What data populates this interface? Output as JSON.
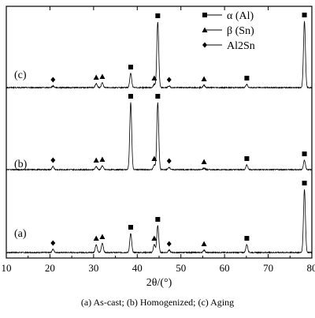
{
  "chart_data": {
    "type": "line",
    "xlabel": "2θ/(°)",
    "xlim": [
      10,
      80
    ],
    "x_ticks": [
      10,
      20,
      30,
      40,
      50,
      60,
      70,
      80
    ],
    "legend": {
      "placement": "top-right",
      "entries": [
        {
          "marker": "square",
          "label": "α (Al)"
        },
        {
          "marker": "triangle",
          "label": "β (Sn)"
        },
        {
          "marker": "diamond",
          "label": "Al2Sn"
        }
      ]
    },
    "series": [
      {
        "name": "(a)",
        "peaks": [
          {
            "x": 20.7,
            "h": 0.04,
            "phase": "diamond"
          },
          {
            "x": 30.6,
            "h": 0.1,
            "phase": "triangle"
          },
          {
            "x": 32.0,
            "h": 0.12,
            "phase": "triangle"
          },
          {
            "x": 38.5,
            "h": 0.24,
            "phase": "square"
          },
          {
            "x": 43.9,
            "h": 0.1,
            "phase": "triangle"
          },
          {
            "x": 44.7,
            "h": 0.34,
            "phase": "square"
          },
          {
            "x": 47.3,
            "h": 0.03,
            "phase": "diamond"
          },
          {
            "x": 55.3,
            "h": 0.03,
            "phase": "triangle"
          },
          {
            "x": 65.1,
            "h": 0.1,
            "phase": "square"
          },
          {
            "x": 78.3,
            "h": 0.8,
            "phase": "square"
          }
        ]
      },
      {
        "name": "(b)",
        "peaks": [
          {
            "x": 20.7,
            "h": 0.04,
            "phase": "diamond"
          },
          {
            "x": 30.6,
            "h": 0.04,
            "phase": "triangle"
          },
          {
            "x": 32.0,
            "h": 0.05,
            "phase": "triangle"
          },
          {
            "x": 38.5,
            "h": 0.85,
            "phase": "square"
          },
          {
            "x": 43.9,
            "h": 0.06,
            "phase": "triangle"
          },
          {
            "x": 44.7,
            "h": 0.85,
            "phase": "square"
          },
          {
            "x": 47.3,
            "h": 0.03,
            "phase": "diamond"
          },
          {
            "x": 55.3,
            "h": 0.02,
            "phase": "triangle"
          },
          {
            "x": 65.1,
            "h": 0.06,
            "phase": "square"
          },
          {
            "x": 78.3,
            "h": 0.12,
            "phase": "square"
          }
        ]
      },
      {
        "name": "(c)",
        "peaks": [
          {
            "x": 20.7,
            "h": 0.02,
            "phase": "diamond"
          },
          {
            "x": 30.6,
            "h": 0.05,
            "phase": "triangle"
          },
          {
            "x": 32.0,
            "h": 0.06,
            "phase": "triangle"
          },
          {
            "x": 38.5,
            "h": 0.18,
            "phase": "square"
          },
          {
            "x": 43.9,
            "h": 0.04,
            "phase": "triangle"
          },
          {
            "x": 44.7,
            "h": 0.83,
            "phase": "square"
          },
          {
            "x": 47.3,
            "h": 0.02,
            "phase": "diamond"
          },
          {
            "x": 55.3,
            "h": 0.03,
            "phase": "triangle"
          },
          {
            "x": 65.1,
            "h": 0.04,
            "phase": "square"
          },
          {
            "x": 78.3,
            "h": 0.84,
            "phase": "square"
          }
        ]
      }
    ]
  },
  "caption": "(a) As-cast; (b) Homogenized; (c) Aging"
}
